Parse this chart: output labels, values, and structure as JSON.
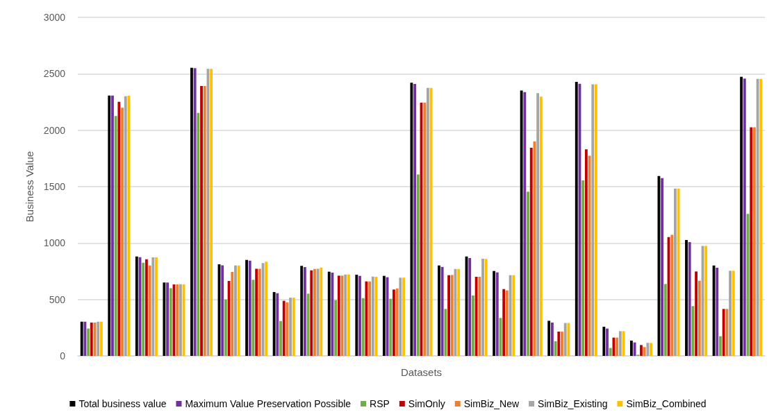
{
  "chart_data": {
    "type": "bar",
    "xlabel": "Datasets",
    "ylabel": "Business Value",
    "categories": [
      null,
      null,
      null,
      null,
      null,
      null,
      null,
      null,
      null,
      null,
      null,
      null,
      null,
      null,
      null,
      null,
      null,
      null,
      null,
      null,
      null,
      null,
      null,
      null,
      null
    ],
    "series": [
      {
        "name": "Total business value",
        "color": "#000000",
        "values": [
          303,
          2307,
          881,
          650,
          2553,
          811,
          850,
          566,
          797,
          746,
          719,
          709,
          2420,
          801,
          881,
          752,
          2352,
          311,
          2428,
          258,
          135,
          1594,
          1027,
          801,
          2473
        ]
      },
      {
        "name": "Maximum Value Preservation Possible",
        "color": "#7030a0",
        "values": [
          303,
          2307,
          875,
          650,
          2549,
          803,
          844,
          555,
          787,
          738,
          709,
          697,
          2410,
          789,
          867,
          740,
          2338,
          295,
          2412,
          242,
          119,
          1576,
          1008,
          781,
          2457
        ]
      },
      {
        "name": "RSP",
        "color": "#70ad47",
        "values": [
          242,
          2125,
          826,
          600,
          2153,
          500,
          674,
          309,
          551,
          494,
          512,
          506,
          1608,
          416,
          535,
          336,
          1455,
          129,
          1555,
          70,
          10,
          637,
          441,
          174,
          1258
        ]
      },
      {
        "name": "SimOnly",
        "color": "#c00000",
        "values": [
          295,
          2252,
          856,
          633,
          2391,
          664,
          772,
          488,
          758,
          711,
          660,
          588,
          2244,
          715,
          701,
          592,
          1844,
          215,
          1830,
          162,
          96,
          1053,
          748,
          416,
          2026
        ]
      },
      {
        "name": "SimBiz_New",
        "color": "#ed7d31",
        "values": [
          295,
          2199,
          801,
          633,
          2391,
          744,
          772,
          475,
          770,
          711,
          660,
          598,
          2244,
          717,
          701,
          580,
          1901,
          215,
          1774,
          162,
          78,
          1072,
          666,
          416,
          2026
        ]
      },
      {
        "name": "SimBiz_Existing",
        "color": "#a5a5a5",
        "values": [
          303,
          2301,
          873,
          635,
          2543,
          801,
          822,
          516,
          772,
          721,
          703,
          693,
          2375,
          770,
          861,
          715,
          2328,
          291,
          2406,
          219,
          115,
          1483,
          975,
          754,
          2455
        ]
      },
      {
        "name": "SimBiz_Combined",
        "color": "#ffc000",
        "values": [
          303,
          2305,
          873,
          633,
          2543,
          801,
          834,
          516,
          783,
          721,
          701,
          693,
          2375,
          770,
          859,
          715,
          2297,
          291,
          2406,
          219,
          115,
          1483,
          975,
          754,
          2455
        ]
      }
    ],
    "ylim": [
      0,
      3000
    ],
    "yticks": [
      0,
      500,
      1000,
      1500,
      2000,
      2500,
      3000
    ],
    "grid": "y",
    "legend": "bottom"
  }
}
